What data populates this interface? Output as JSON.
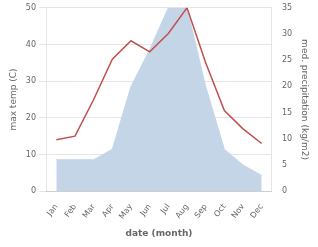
{
  "chart_data": {
    "type": "line",
    "categories": [
      "Jan",
      "Feb",
      "Mar",
      "Apr",
      "May",
      "Jun",
      "Jul",
      "Aug",
      "Sep",
      "Oct",
      "Nov",
      "Dec"
    ],
    "xlabel": "date (month)",
    "ylabel": "max temp (C)",
    "y2label": "med. precipitation (kg/m2)",
    "series": [
      {
        "type": "line",
        "color": "#c0504d",
        "values": [
          14,
          15,
          25,
          36,
          41,
          38,
          43,
          50,
          35,
          22,
          17,
          13
        ]
      },
      {
        "type": "area",
        "color": "#c5d5e8",
        "axis": "y2",
        "values": [
          6,
          6,
          6,
          8,
          20,
          27,
          35,
          35,
          20,
          8,
          5,
          3
        ]
      }
    ],
    "ylim": [
      0,
      50
    ],
    "yticks": [
      0,
      10,
      20,
      30,
      40,
      50
    ],
    "y2lim": [
      0,
      35
    ],
    "y2ticks": [
      0,
      5,
      10,
      15,
      20,
      25,
      30,
      35
    ],
    "grid": true
  }
}
